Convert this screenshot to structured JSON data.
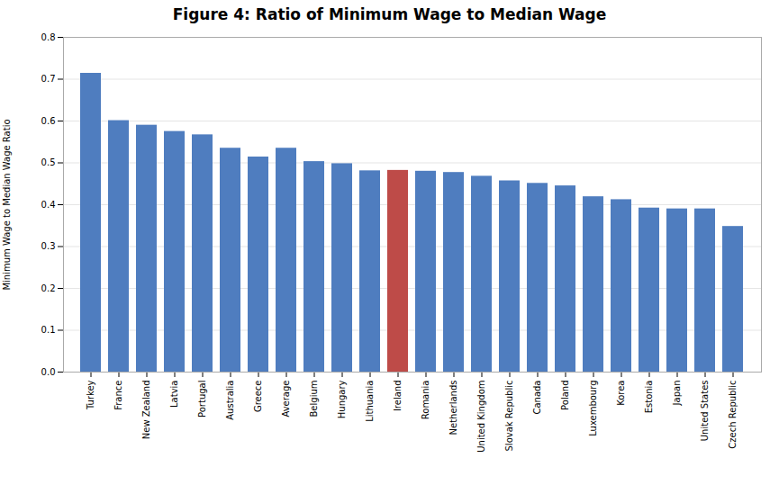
{
  "chart_data": {
    "type": "bar",
    "title": "Figure 4: Ratio of Minimum Wage to Median Wage",
    "ylabel": "Minimum Wage to Median Wage Ratio",
    "categories": [
      "Turkey",
      "France",
      "New Zealand",
      "Latvia",
      "Portugal",
      "Australia",
      "Greece",
      "Average",
      "Belgium",
      "Hungary",
      "Lithuania",
      "Ireland",
      "Romania",
      "Netherlands",
      "United Kingdom",
      "Slovak Republic",
      "Canada",
      "Poland",
      "Luxembourg",
      "Korea",
      "Estonia",
      "Japan",
      "United States",
      "Czech Republic"
    ],
    "values": [
      0.714,
      0.601,
      0.59,
      0.575,
      0.567,
      0.535,
      0.514,
      0.535,
      0.503,
      0.498,
      0.481,
      0.482,
      0.48,
      0.477,
      0.468,
      0.457,
      0.451,
      0.445,
      0.419,
      0.412,
      0.392,
      0.39,
      0.39,
      0.348
    ],
    "colors": [
      "#4F7DBF",
      "#4F7DBF",
      "#4F7DBF",
      "#4F7DBF",
      "#4F7DBF",
      "#4F7DBF",
      "#4F7DBF",
      "#4F7DBF",
      "#4F7DBF",
      "#4F7DBF",
      "#4F7DBF",
      "#BE4B48",
      "#4F7DBF",
      "#4F7DBF",
      "#4F7DBF",
      "#4F7DBF",
      "#4F7DBF",
      "#4F7DBF",
      "#4F7DBF",
      "#4F7DBF",
      "#4F7DBF",
      "#4F7DBF",
      "#4F7DBF",
      "#4F7DBF"
    ],
    "ylim": [
      0,
      0.8
    ],
    "yticks": [
      {
        "value": 0,
        "label": "0.0"
      },
      0.1,
      0.2,
      0.3,
      0.4,
      0.5,
      0.6,
      0.7,
      0.8
    ],
    "grid": true
  }
}
